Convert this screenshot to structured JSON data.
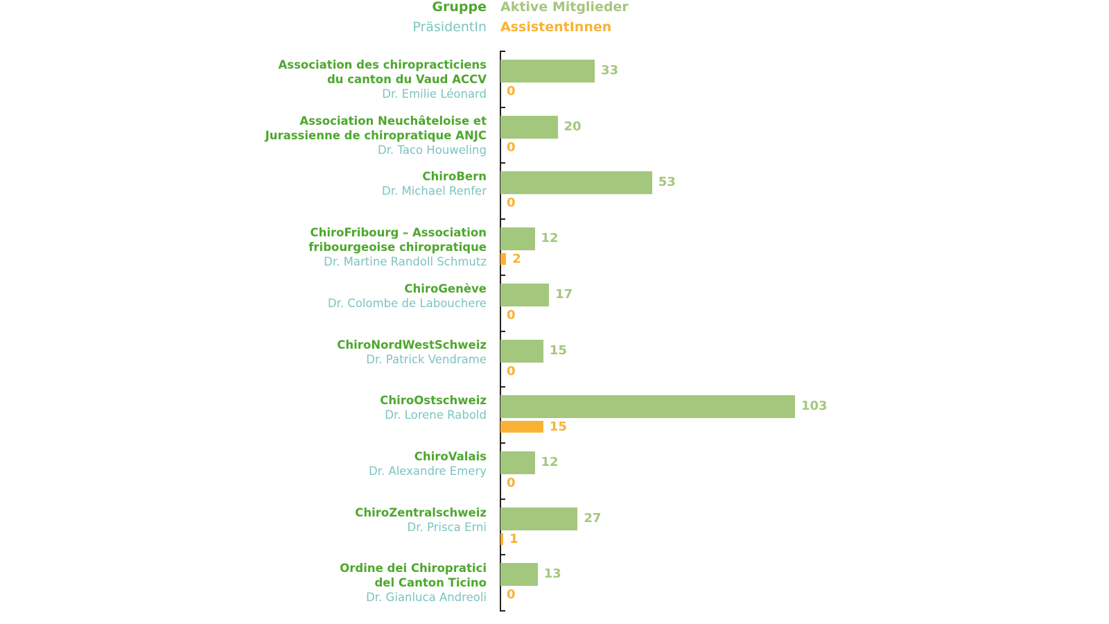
{
  "colors": {
    "group": "#4ea72e",
    "president": "#7bc4bf",
    "active": "#a4c77e",
    "assistants": "#f9b233",
    "axis": "#222222"
  },
  "legend": {
    "group": "Gruppe",
    "active": "Aktive Mitglieder",
    "president": "PräsidentIn",
    "assistants": "AssistentInnen"
  },
  "chart_data": {
    "type": "bar",
    "orientation": "horizontal",
    "categories": [
      {
        "group": [
          "Association des chiropracticiens",
          "du canton du Vaud ACCV"
        ],
        "president": "Dr. Emilie Léonard"
      },
      {
        "group": [
          "Association Neuchâteloise et",
          "Jurassienne de chiropratique ANJC"
        ],
        "president": "Dr. Taco Houweling"
      },
      {
        "group": [
          "ChiroBern"
        ],
        "president": "Dr. Michael Renfer"
      },
      {
        "group": [
          "ChiroFribourg – Association",
          "fribourgeoise chiropratique"
        ],
        "president": "Dr. Martine Randoll Schmutz"
      },
      {
        "group": [
          "ChiroGenève"
        ],
        "president": "Dr. Colombe de Labouchere"
      },
      {
        "group": [
          "ChiroNordWestSchweiz"
        ],
        "president": "Dr. Patrick Vendrame"
      },
      {
        "group": [
          "ChiroOstschweiz"
        ],
        "president": "Dr. Lorene Rabold"
      },
      {
        "group": [
          "ChiroValais"
        ],
        "president": "Dr. Alexandre Emery"
      },
      {
        "group": [
          "ChiroZentralschweiz"
        ],
        "president": "Dr. Prisca Erni"
      },
      {
        "group": [
          "Ordine dei Chiropratici",
          "del Canton Ticino"
        ],
        "president": "Dr. Gianluca Andreoli"
      }
    ],
    "series": [
      {
        "name": "Aktive Mitglieder",
        "values": [
          33,
          20,
          53,
          12,
          17,
          15,
          103,
          12,
          27,
          13
        ]
      },
      {
        "name": "AssistentInnen",
        "values": [
          0,
          0,
          0,
          2,
          0,
          0,
          15,
          0,
          1,
          0
        ]
      }
    ],
    "xlim": [
      0,
      103
    ]
  }
}
